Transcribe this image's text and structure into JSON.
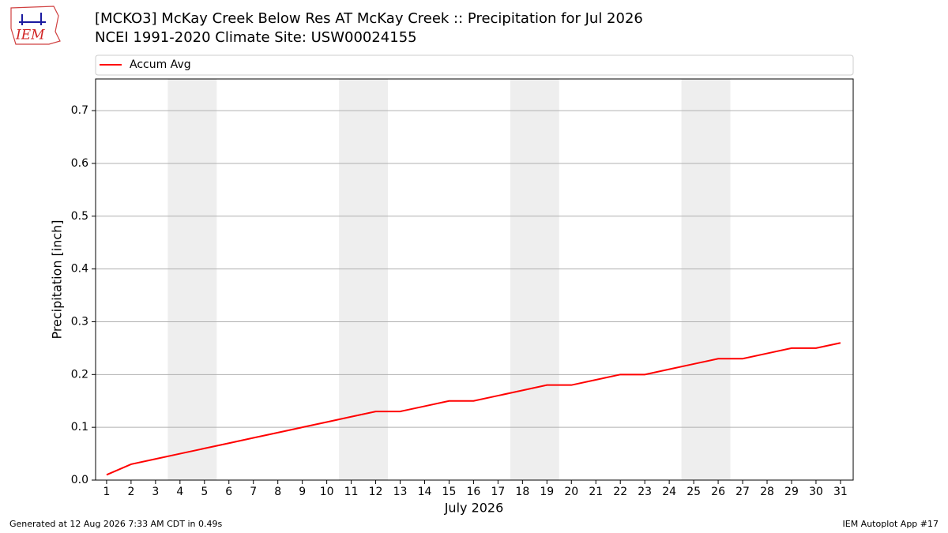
{
  "chart_data": {
    "type": "line",
    "title": "[MCKO3] McKay Creek Below Res  AT McKay Creek :: Precipitation for Jul 2026",
    "subtitle": "NCEI 1991-2020 Climate Site: USW00024155",
    "logo_text": "IEM",
    "xlabel": "July 2026",
    "ylabel": "Precipitation [inch]",
    "x": [
      1,
      2,
      3,
      4,
      5,
      6,
      7,
      8,
      9,
      10,
      11,
      12,
      13,
      14,
      15,
      16,
      17,
      18,
      19,
      20,
      21,
      22,
      23,
      24,
      25,
      26,
      27,
      28,
      29,
      30,
      31
    ],
    "series": [
      {
        "name": "Accum Avg",
        "color": "#ff0000",
        "values": [
          0.01,
          0.03,
          0.04,
          0.05,
          0.06,
          0.07,
          0.08,
          0.09,
          0.1,
          0.11,
          0.12,
          0.13,
          0.13,
          0.14,
          0.15,
          0.15,
          0.16,
          0.17,
          0.18,
          0.18,
          0.19,
          0.2,
          0.2,
          0.21,
          0.22,
          0.23,
          0.23,
          0.24,
          0.25,
          0.25,
          0.26
        ]
      }
    ],
    "shaded_spans": [
      [
        3.5,
        5.5
      ],
      [
        10.5,
        12.5
      ],
      [
        17.5,
        19.5
      ],
      [
        24.5,
        26.5
      ]
    ],
    "shade_color": "#eeeeee",
    "xlim": [
      0.55,
      31.52
    ],
    "ylim": [
      0,
      0.76
    ],
    "xticks": [
      1,
      2,
      3,
      4,
      5,
      6,
      7,
      8,
      9,
      10,
      11,
      12,
      13,
      14,
      15,
      16,
      17,
      18,
      19,
      20,
      21,
      22,
      23,
      24,
      25,
      26,
      27,
      28,
      29,
      30,
      31
    ],
    "yticks": [
      {
        "value": 0,
        "label": "0.0"
      },
      0.1,
      0.2,
      0.3,
      0.4,
      0.5,
      0.6,
      0.7
    ],
    "grid": true,
    "legend": "top",
    "footer_left": "Generated at 12 Aug 2026 7:33 AM CDT in 0.49s",
    "footer_right": "IEM Autoplot App #17"
  }
}
